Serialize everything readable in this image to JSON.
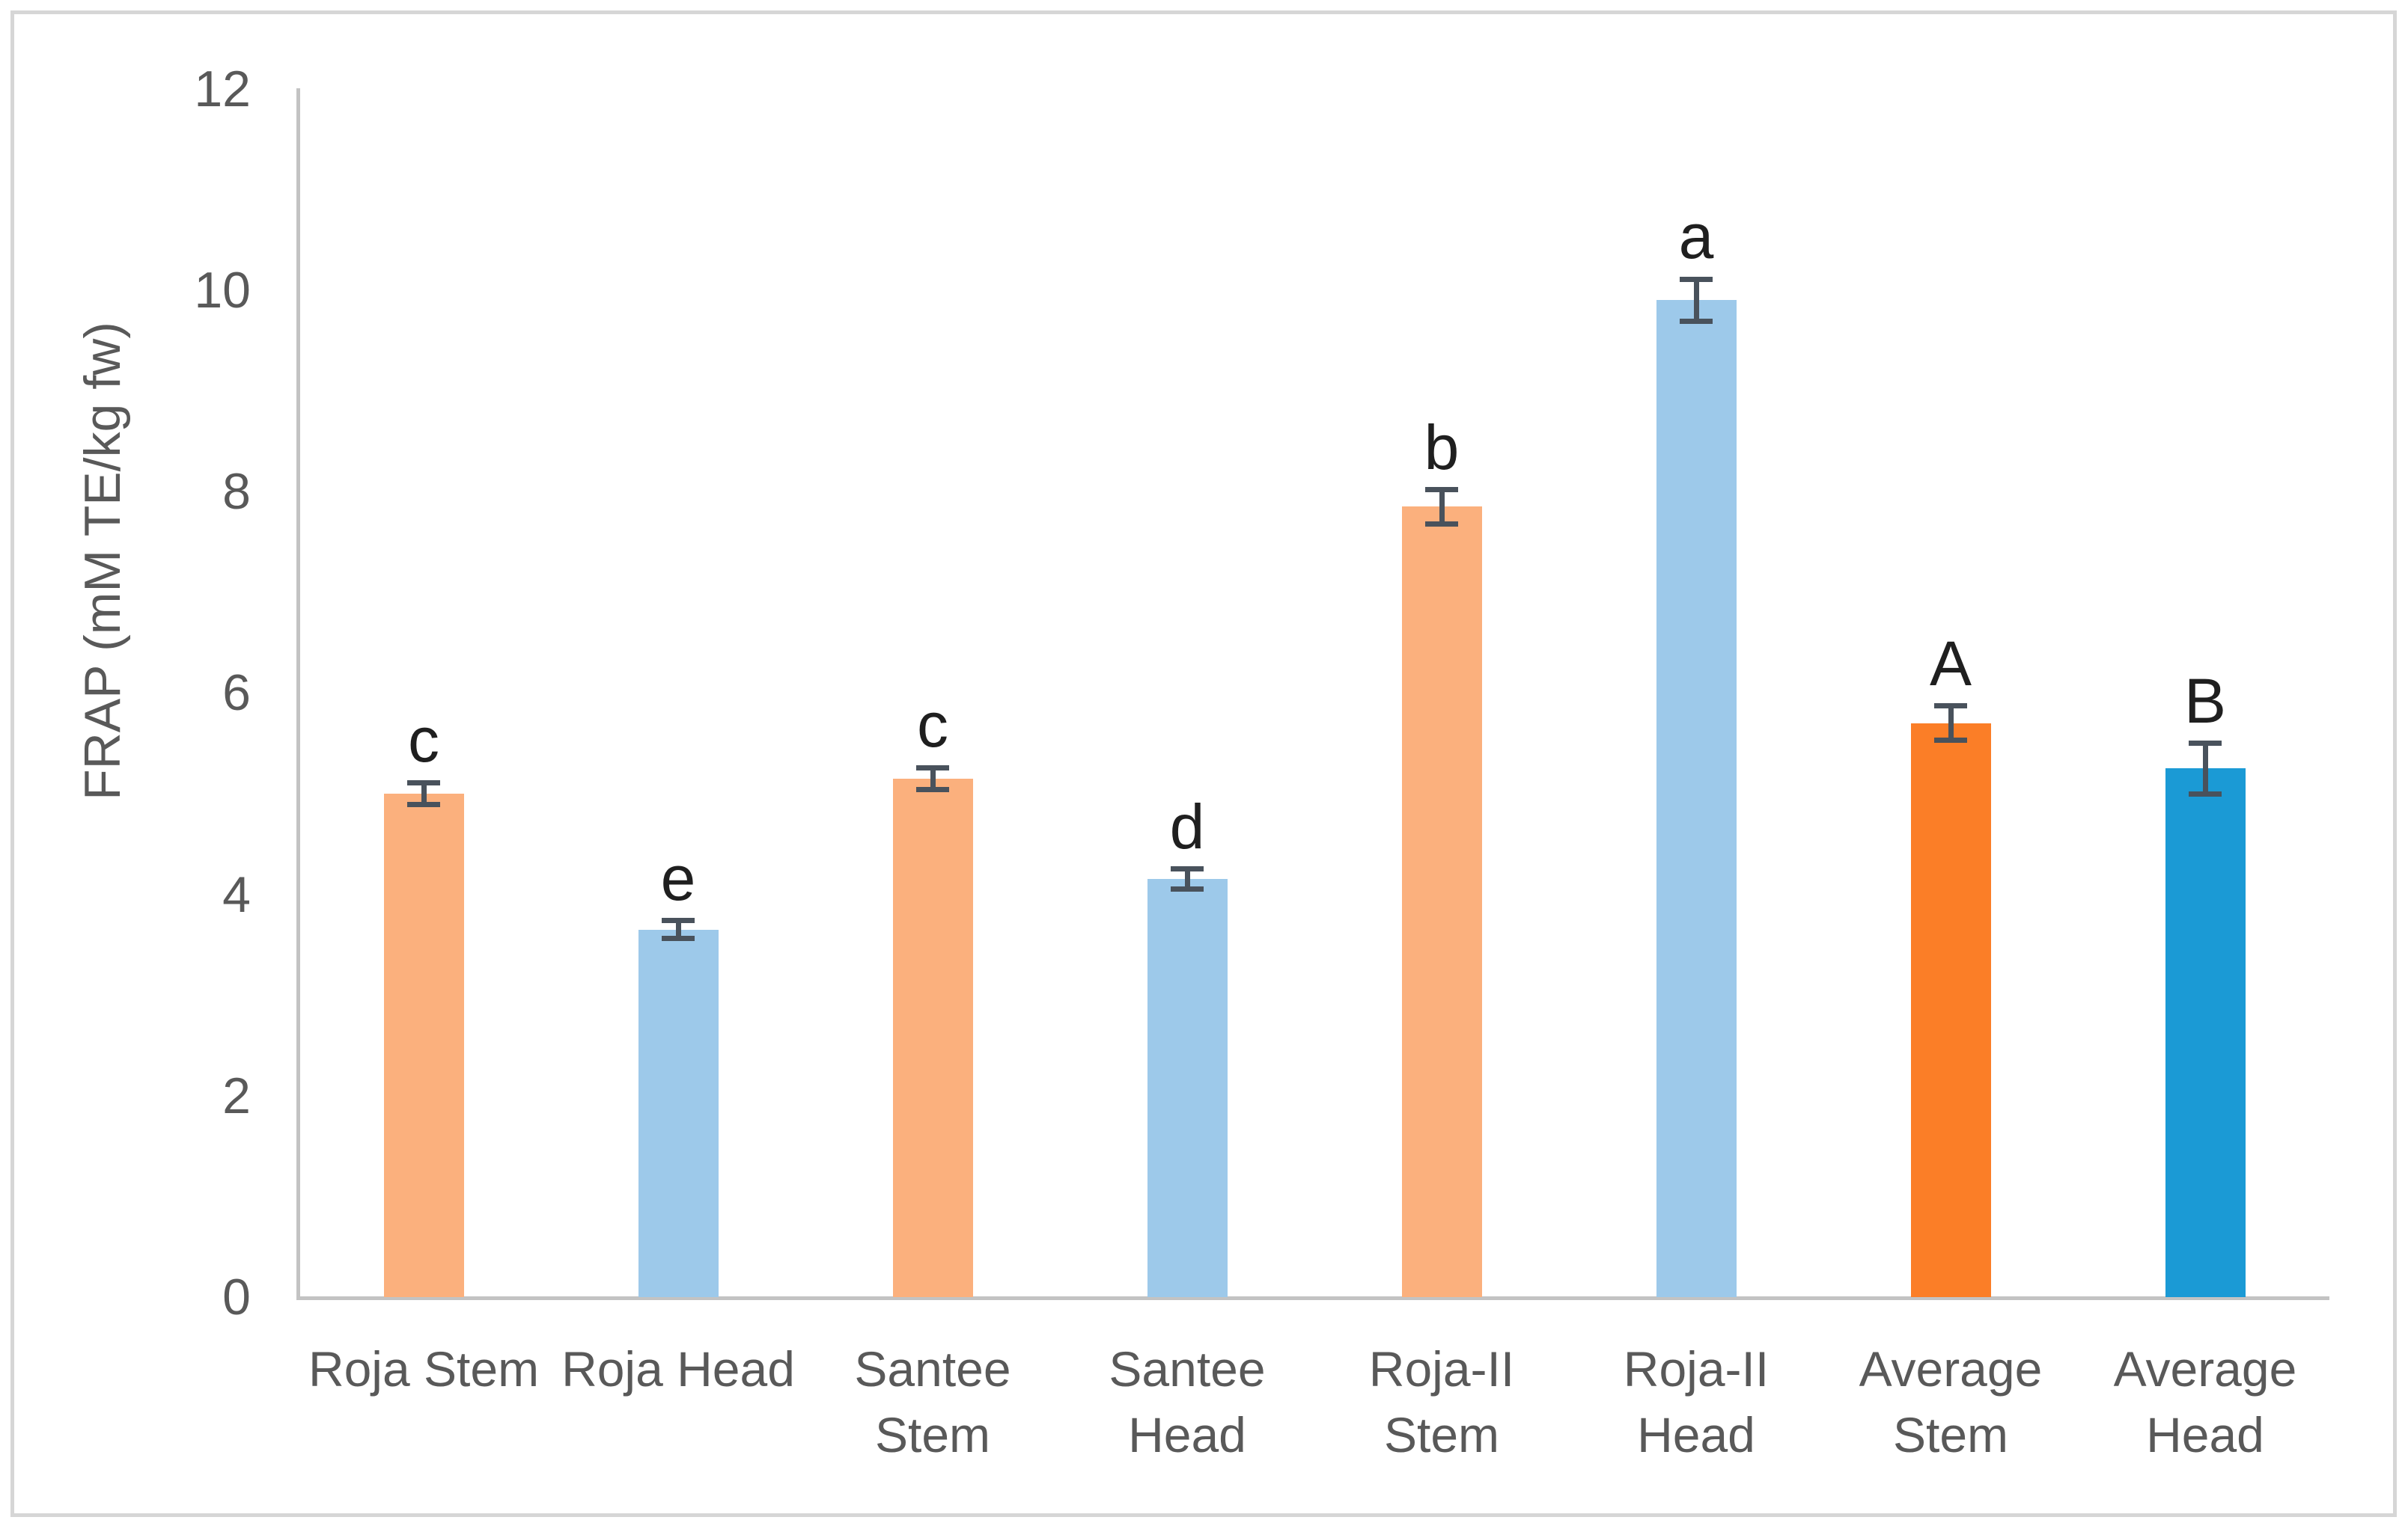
{
  "chart_data": {
    "type": "bar",
    "title": "",
    "xlabel": "",
    "ylabel": "FRAP (mM TE/kg fw)",
    "ylim": [
      0,
      12
    ],
    "yticks": [
      0,
      2,
      4,
      6,
      8,
      10,
      12
    ],
    "grid": false,
    "legend": "none",
    "categories": [
      "Roja Stem",
      "Roja Head",
      "Santee Stem",
      "Santee Head",
      "Roja-II Stem",
      "Roja-II Head",
      "Average Stem",
      "Average Head"
    ],
    "bars": [
      {
        "label": "Roja Stem",
        "wrapped_label": "Roja Stem",
        "value": 5.0,
        "error": 0.11,
        "letter": "c",
        "color": "light_orange"
      },
      {
        "label": "Roja Head",
        "wrapped_label": "Roja Head",
        "value": 3.65,
        "error": 0.09,
        "letter": "e",
        "color": "light_blue"
      },
      {
        "label": "Santee Stem",
        "wrapped_label": "Santee\nStem",
        "value": 5.15,
        "error": 0.11,
        "letter": "c",
        "color": "light_orange"
      },
      {
        "label": "Santee Head",
        "wrapped_label": "Santee\nHead",
        "value": 4.15,
        "error": 0.1,
        "letter": "d",
        "color": "light_blue"
      },
      {
        "label": "Roja-II Stem",
        "wrapped_label": "Roja-II\nStem",
        "value": 7.85,
        "error": 0.17,
        "letter": "b",
        "color": "light_orange"
      },
      {
        "label": "Roja-II Head",
        "wrapped_label": "Roja-II\nHead",
        "value": 9.9,
        "error": 0.21,
        "letter": "a",
        "color": "light_blue"
      },
      {
        "label": "Average Stem",
        "wrapped_label": "Average\nStem",
        "value": 5.7,
        "error": 0.17,
        "letter": "A",
        "color": "dark_orange"
      },
      {
        "label": "Average Head",
        "wrapped_label": "Average\nHead",
        "value": 5.25,
        "error": 0.25,
        "letter": "B",
        "color": "dark_blue"
      }
    ],
    "colors": {
      "light_orange": "#fbb07d",
      "light_blue": "#9dc9ea",
      "dark_orange": "#fb7e27",
      "dark_blue": "#1b9ad5",
      "error_bar": "#49525c",
      "axis_line": "#c3c3c3",
      "tick_text": "#595959",
      "letter_text": "#1f1f1f"
    }
  }
}
